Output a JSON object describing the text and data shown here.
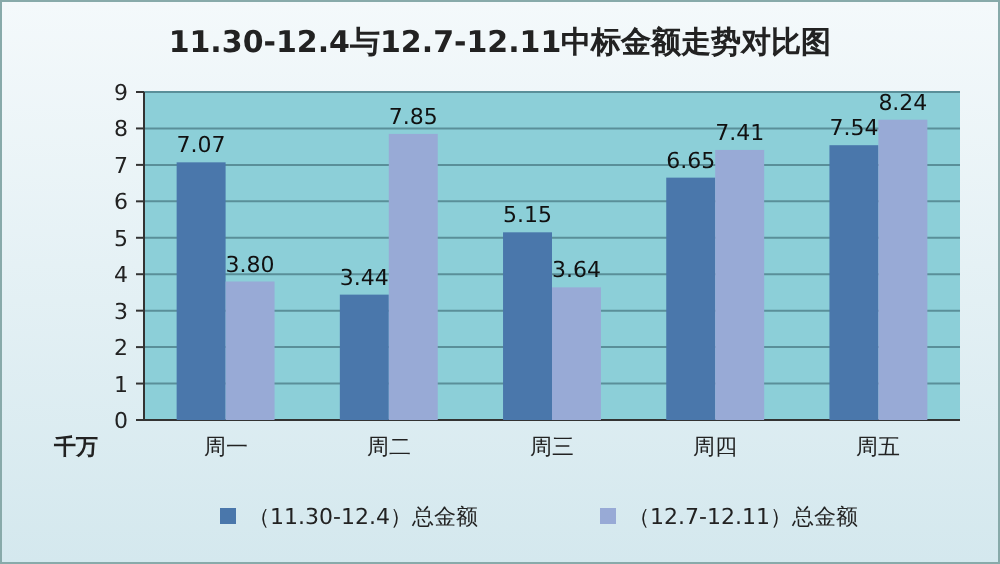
{
  "chart_data": {
    "type": "bar",
    "title": "11.30-12.4与12.7-12.11中标金额走势对比图",
    "ylabel": "千万",
    "categories": [
      "周一",
      "周二",
      "周三",
      "周四",
      "周五"
    ],
    "series": [
      {
        "name": "（11.30-12.4）总金额",
        "color": "#4a77ab",
        "values": [
          7.07,
          3.44,
          5.15,
          6.65,
          7.54
        ],
        "value_labels": [
          "7.07",
          "3.44",
          "5.15",
          "6.65",
          "7.54"
        ]
      },
      {
        "name": "（12.7-12.11）总金额",
        "color": "#98aad6",
        "values": [
          3.8,
          7.85,
          3.64,
          7.41,
          8.24
        ],
        "value_labels": [
          "3.80",
          "7.85",
          "3.64",
          "7.41",
          "8.24"
        ]
      }
    ],
    "ylim": [
      0,
      9
    ],
    "yticks": [
      0,
      1,
      2,
      3,
      4,
      5,
      6,
      7,
      8,
      9
    ],
    "grid": "y",
    "legend": "bottom"
  }
}
